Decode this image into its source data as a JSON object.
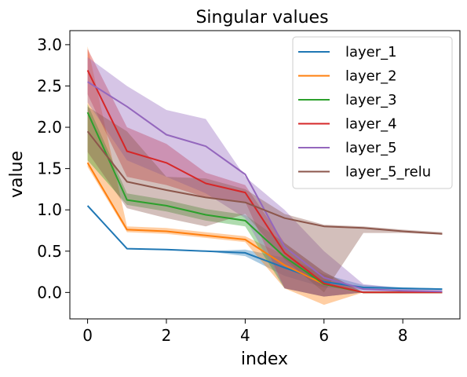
{
  "chart_data": {
    "type": "line",
    "title": "Singular values",
    "xlabel": "index",
    "ylabel": "value",
    "xlim": [
      -0.45,
      9.45
    ],
    "ylim": [
      -0.32,
      3.17
    ],
    "xticks": [
      0,
      2,
      4,
      6,
      8
    ],
    "xtick_labels": [
      "0",
      "2",
      "4",
      "6",
      "8"
    ],
    "yticks": [
      0.0,
      0.5,
      1.0,
      1.5,
      2.0,
      2.5,
      3.0
    ],
    "ytick_labels": [
      "0.0",
      "0.5",
      "1.0",
      "1.5",
      "2.0",
      "2.5",
      "3.0"
    ],
    "grid": false,
    "legend_position": "top-right",
    "x": [
      0,
      1,
      2,
      3,
      4,
      5,
      6,
      7,
      8,
      9
    ],
    "series": [
      {
        "name": "layer_1",
        "color": "#1f77b4",
        "values": [
          1.05,
          0.53,
          0.52,
          0.5,
          0.48,
          0.3,
          0.13,
          0.06,
          0.05,
          0.04
        ],
        "lower": [
          1.05,
          0.53,
          0.52,
          0.5,
          0.44,
          0.2,
          0.06,
          0.03,
          0.03,
          0.03
        ],
        "upper": [
          1.05,
          0.53,
          0.52,
          0.5,
          0.52,
          0.42,
          0.22,
          0.09,
          0.06,
          0.05
        ]
      },
      {
        "name": "layer_2",
        "color": "#ff7f0e",
        "values": [
          1.57,
          0.76,
          0.74,
          0.69,
          0.64,
          0.33,
          0.1,
          0.0,
          0.0,
          0.0
        ],
        "lower": [
          1.52,
          0.73,
          0.71,
          0.66,
          0.61,
          0.05,
          -0.15,
          0.0,
          0.0,
          0.0
        ],
        "upper": [
          2.98,
          0.8,
          0.78,
          0.73,
          0.68,
          0.45,
          0.22,
          0.0,
          0.0,
          0.0
        ]
      },
      {
        "name": "layer_3",
        "color": "#2ca02c",
        "values": [
          2.18,
          1.12,
          1.05,
          0.94,
          0.87,
          0.43,
          0.1,
          0.0,
          0.0,
          0.0
        ],
        "lower": [
          1.6,
          1.06,
          0.98,
          0.87,
          0.8,
          0.05,
          -0.05,
          0.0,
          0.0,
          0.0
        ],
        "upper": [
          2.28,
          1.2,
          1.12,
          1.01,
          0.94,
          0.6,
          0.25,
          0.0,
          0.0,
          0.0
        ]
      },
      {
        "name": "layer_4",
        "color": "#d62728",
        "values": [
          2.69,
          1.71,
          1.57,
          1.32,
          1.21,
          0.48,
          0.11,
          0.0,
          0.0,
          0.0
        ],
        "lower": [
          2.4,
          1.4,
          1.3,
          1.15,
          1.1,
          0.05,
          -0.05,
          0.0,
          0.0,
          0.0
        ],
        "upper": [
          2.95,
          2.0,
          1.8,
          1.45,
          1.3,
          0.6,
          0.25,
          0.0,
          0.0,
          0.0
        ]
      },
      {
        "name": "layer_5",
        "color": "#9467bd",
        "values": [
          2.55,
          2.25,
          1.91,
          1.77,
          1.43,
          0.55,
          0.18,
          0.04,
          0.02,
          0.01
        ],
        "lower": [
          2.3,
          1.6,
          1.4,
          1.2,
          0.9,
          0.05,
          -0.05,
          0.0,
          0.0,
          0.0
        ],
        "upper": [
          2.85,
          2.5,
          2.21,
          2.1,
          1.4,
          1.0,
          0.5,
          0.1,
          0.05,
          0.03
        ]
      },
      {
        "name": "layer_5_relu",
        "color": "#8c564b",
        "values": [
          1.95,
          1.34,
          1.24,
          1.15,
          1.09,
          0.9,
          0.8,
          0.78,
          0.74,
          0.71
        ],
        "lower": [
          1.7,
          1.02,
          0.9,
          0.8,
          0.95,
          0.4,
          0.0,
          0.72,
          0.72,
          0.7
        ],
        "upper": [
          2.25,
          1.95,
          1.4,
          1.38,
          1.25,
          0.95,
          0.82,
          0.8,
          0.76,
          0.73
        ]
      }
    ]
  }
}
